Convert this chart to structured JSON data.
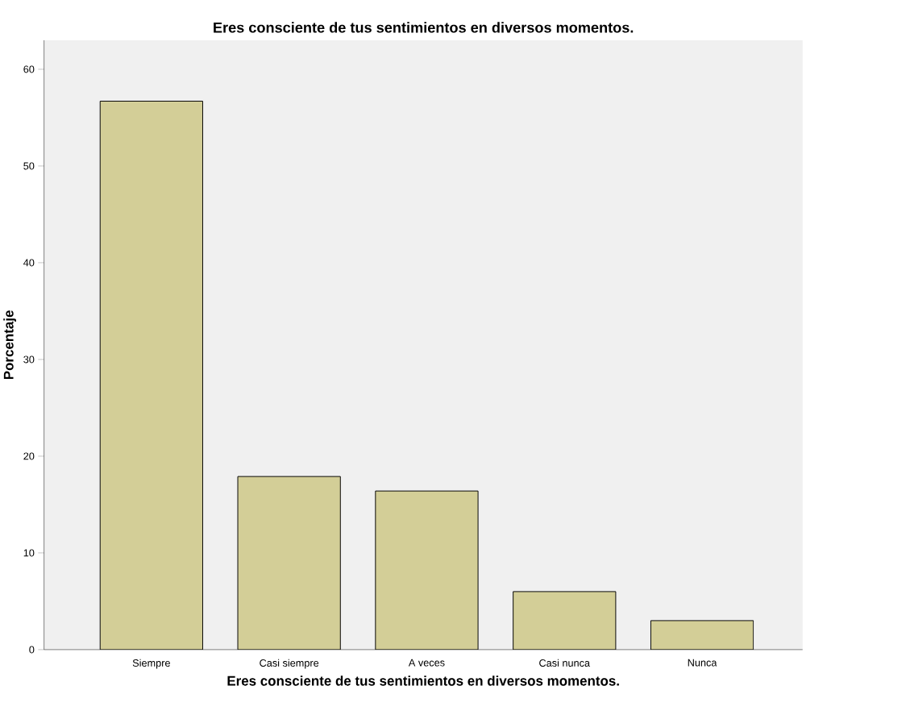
{
  "chart_data": {
    "type": "bar",
    "title": "Eres consciente de tus sentimientos en diversos momentos.",
    "xlabel": "Eres consciente de tus sentimientos en diversos momentos.",
    "ylabel": "Porcentaje",
    "categories": [
      "Siempre",
      "Casi siempre",
      "A veces",
      "Casi nunca",
      "Nunca"
    ],
    "values": [
      56.7,
      17.9,
      16.4,
      6.0,
      3.0
    ],
    "color": "#d3ce97",
    "ylim": [
      0,
      63
    ],
    "yticks": [
      0,
      10,
      20,
      30,
      40,
      50,
      60
    ],
    "grid": false
  }
}
